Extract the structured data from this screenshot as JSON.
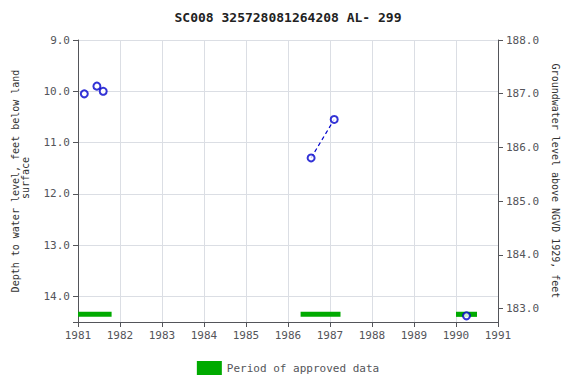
{
  "chart_data": {
    "type": "scatter",
    "title": "SC008 325728081264208 AL- 299",
    "ylabel": "Depth to water level, feet below land\n surface",
    "y2label": "Groundwater level above NGVD 1929, feet",
    "xlim": [
      1981,
      1991
    ],
    "xticks": [
      1981,
      1982,
      1983,
      1984,
      1985,
      1986,
      1987,
      1988,
      1989,
      1990,
      1991
    ],
    "ylim": [
      14.5,
      9.0
    ],
    "yticks": [
      {
        "value": 9.0,
        "label": "9.0"
      },
      {
        "value": 10.0,
        "label": "10.0"
      },
      {
        "value": 11.0,
        "label": "11.0"
      },
      {
        "value": 12.0,
        "label": "12.0"
      },
      {
        "value": 13.0,
        "label": "13.0"
      },
      {
        "value": 14.0,
        "label": "14.0"
      }
    ],
    "y2lim": [
      182.75,
      188.0
    ],
    "y2ticks": [
      {
        "value": 188.0,
        "label": "188.0"
      },
      {
        "value": 187.0,
        "label": "187.0"
      },
      {
        "value": 186.0,
        "label": "186.0"
      },
      {
        "value": 185.0,
        "label": "185.0"
      },
      {
        "value": 184.0,
        "label": "184.0"
      },
      {
        "value": 183.0,
        "label": "183.0"
      }
    ],
    "grid": true,
    "legend": "bottom",
    "series": [
      {
        "type": "scatter",
        "marker": "open_circle",
        "color": "#0000cc",
        "x": [
          1981.15,
          1981.45,
          1981.6,
          1986.55,
          1987.1,
          1990.25
        ],
        "values": [
          10.05,
          9.9,
          10.0,
          11.3,
          10.55,
          14.38
        ]
      },
      {
        "type": "line",
        "line_style": "dashed",
        "color": "#0000cc",
        "x": [
          1986.55,
          1987.1
        ],
        "values": [
          11.3,
          10.55
        ]
      },
      {
        "type": "bar",
        "orientation": "horizontal",
        "name": "Period of approved data",
        "color": "#00aa00",
        "starts": [
          1981.0,
          1986.3,
          1990.0
        ],
        "ends": [
          1981.8,
          1987.25,
          1990.5
        ],
        "y": 14.35,
        "height": 0.1
      }
    ]
  }
}
